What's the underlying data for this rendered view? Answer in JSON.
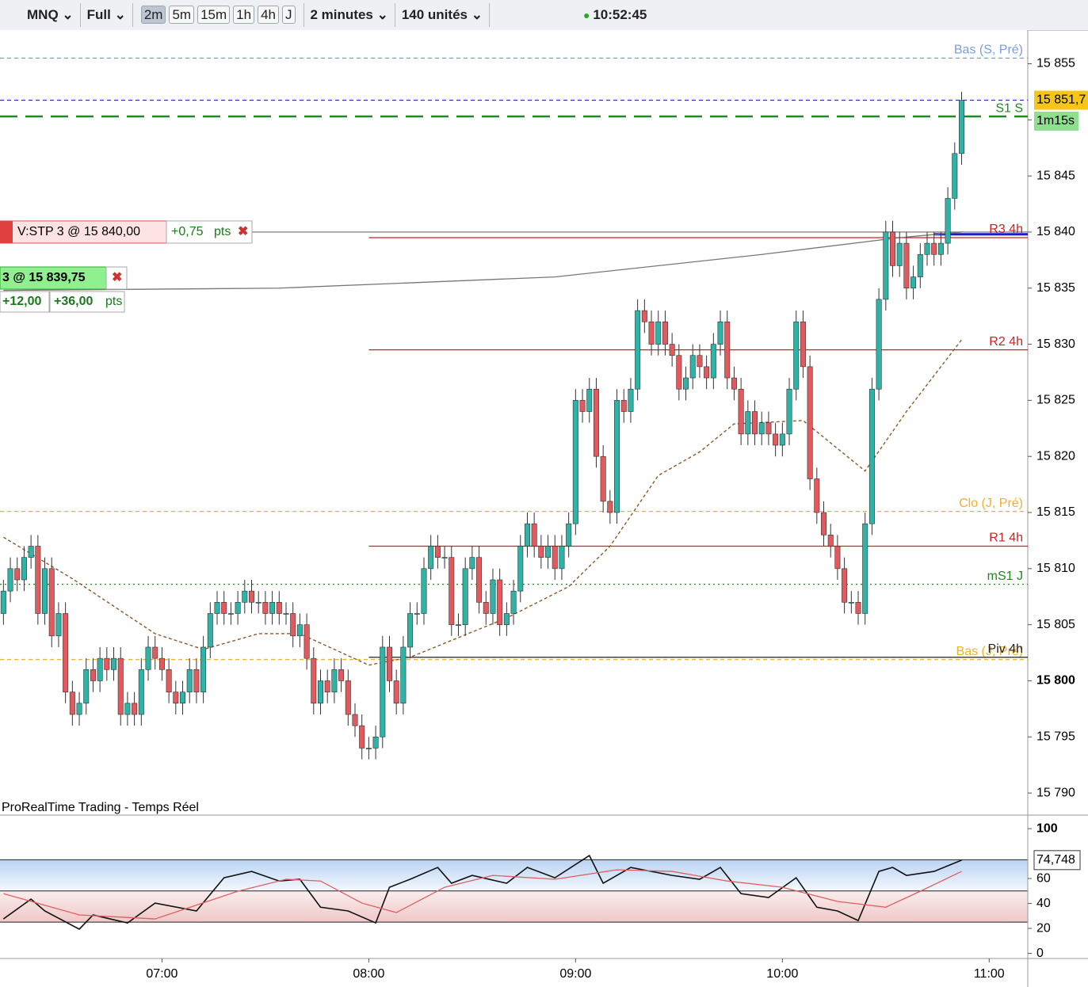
{
  "toolbar": {
    "symbol": "MNQ",
    "mode": "Full",
    "timeframes": [
      "2m",
      "5m",
      "15m",
      "1h",
      "4h",
      "J"
    ],
    "interval": "2 minutes",
    "units": "140 unités",
    "clock": "10:52:45"
  },
  "footer": "ProRealTime Trading - Temps Réel",
  "chart_data": [
    {
      "type": "candlestick",
      "up_color": "#2fb3a6",
      "down_color": "#e25a5e",
      "ylim": [
        15788.1,
        15858
      ],
      "xlim": [
        -0.5,
        148.6
      ],
      "yticks": [
        {
          "value": 15855,
          "label": "15 855"
        },
        {
          "value": 15850,
          "label": "15 850"
        },
        {
          "value": 15845,
          "label": "15 845"
        },
        {
          "value": 15840,
          "label": "15 840"
        },
        {
          "value": 15835,
          "label": "15 835"
        },
        {
          "value": 15830,
          "label": "15 830"
        },
        {
          "value": 15825,
          "label": "15 825"
        },
        {
          "value": 15820,
          "label": "15 820"
        },
        {
          "value": 15815,
          "label": "15 815"
        },
        {
          "value": 15810,
          "label": "15 810"
        },
        {
          "value": 15805,
          "label": "15 805"
        },
        {
          "value": 15800,
          "label": "15 800"
        },
        {
          "value": 15795,
          "label": "15 795"
        },
        {
          "value": 15790,
          "label": "15 790"
        }
      ],
      "xticks": [
        {
          "value": 23,
          "label": "07:00"
        },
        {
          "value": 53,
          "label": "08:00"
        },
        {
          "value": 83,
          "label": "09:00"
        },
        {
          "value": 113,
          "label": "10:00"
        },
        {
          "value": 143,
          "label": "11:00"
        }
      ],
      "open": [
        15806,
        15808,
        15810,
        15809,
        15811,
        15812,
        15806,
        15810,
        15804,
        15806,
        15799,
        15797,
        15798,
        15801,
        15800,
        15802,
        15801,
        15802,
        15797,
        15798,
        15797,
        15801,
        15803,
        15802,
        15801,
        15799,
        15798,
        15799,
        15801,
        15799,
        15803,
        15806,
        15807,
        15806,
        15806,
        15807,
        15808,
        15807,
        15807,
        15806,
        15807,
        15806,
        15806,
        15804,
        15805,
        15802,
        15798,
        15800,
        15799,
        15801,
        15800,
        15797,
        15796,
        15794,
        15794,
        15795,
        15803,
        15800,
        15798,
        15803,
        15806,
        15806,
        15810,
        15812,
        15811,
        15811,
        15805,
        15805,
        15810,
        15811,
        15807,
        15806,
        15809,
        15805,
        15806,
        15808,
        15812,
        15814,
        15812,
        15811,
        15812,
        15810,
        15812,
        15814,
        15825,
        15824,
        15826,
        15820,
        15816,
        15815,
        15825,
        15824,
        15826,
        15833,
        15832,
        15830,
        15832,
        15830,
        15829,
        15826,
        15827,
        15829,
        15828,
        15827,
        15830,
        15832,
        15827,
        15826,
        15822,
        15824,
        15822,
        15823,
        15822,
        15821,
        15822,
        15826,
        15832,
        15828,
        15818,
        15815,
        15813,
        15812,
        15810,
        15807,
        15807,
        15806,
        15814,
        15826,
        15834,
        15840,
        15837,
        15839,
        15835,
        15836,
        15838,
        15839,
        15838,
        15839,
        15843,
        15847
      ],
      "high": [
        15809,
        15811,
        15811,
        15812,
        15813,
        15813,
        15811,
        15811,
        15807,
        15807,
        15800,
        15799,
        15802,
        15802,
        15803,
        15803,
        15803,
        15803,
        15799,
        15799,
        15802,
        15804,
        15804,
        15803,
        15802,
        15800,
        15800,
        15802,
        15802,
        15804,
        15807,
        15808,
        15808,
        15807,
        15808,
        15809,
        15809,
        15808,
        15808,
        15808,
        15808,
        15807,
        15807,
        15806,
        15806,
        15803,
        15801,
        15801,
        15802,
        15802,
        15801,
        15798,
        15797,
        15795,
        15796,
        15804,
        15804,
        15801,
        15804,
        15807,
        15807,
        15811,
        15813,
        15813,
        15812,
        15812,
        15806,
        15811,
        15812,
        15812,
        15808,
        15810,
        15810,
        15807,
        15809,
        15813,
        15815,
        15815,
        15813,
        15813,
        15813,
        15813,
        15815,
        15826,
        15826,
        15827,
        15827,
        15821,
        15817,
        15826,
        15826,
        15827,
        15834,
        15834,
        15833,
        15833,
        15833,
        15831,
        15830,
        15828,
        15830,
        15830,
        15829,
        15831,
        15833,
        15833,
        15828,
        15827,
        15825,
        15825,
        15824,
        15824,
        15823,
        15823,
        15827,
        15833,
        15833,
        15829,
        15819,
        15816,
        15814,
        15813,
        15811,
        15808,
        15808,
        15815,
        15827,
        15835,
        15841,
        15841,
        15840,
        15840,
        15837,
        15839,
        15840,
        15840,
        15840,
        15844,
        15848,
        15852.5
      ],
      "low": [
        15805,
        15807,
        15808,
        15808,
        15810,
        15805,
        15805,
        15803,
        15803,
        15798,
        15796,
        15796,
        15797,
        15799,
        15799,
        15800,
        15800,
        15796,
        15796,
        15796,
        15796,
        15800,
        15801,
        15800,
        15798,
        15797,
        15797,
        15798,
        15798,
        15798,
        15802,
        15805,
        15805,
        15805,
        15805,
        15806,
        15806,
        15806,
        15805,
        15805,
        15805,
        15805,
        15803,
        15803,
        15801,
        15797,
        15797,
        15798,
        15798,
        15799,
        15796,
        15795,
        15793,
        15793,
        15793,
        15794,
        15799,
        15797,
        15797,
        15802,
        15805,
        15805,
        15809,
        15810,
        15810,
        15804,
        15804,
        15804,
        15809,
        15806,
        15805,
        15805,
        15804,
        15804,
        15805,
        15807,
        15811,
        15811,
        15810,
        15810,
        15809,
        15809,
        15811,
        15813,
        15823,
        15823,
        15819,
        15815,
        15814,
        15814,
        15823,
        15823,
        15825,
        15831,
        15829,
        15829,
        15829,
        15828,
        15825,
        15825,
        15826,
        15827,
        15826,
        15826,
        15829,
        15826,
        15825,
        15821,
        15821,
        15821,
        15821,
        15821,
        15820,
        15820,
        15821,
        15825,
        15827,
        15817,
        15814,
        15812,
        15811,
        15809,
        15806,
        15806,
        15805,
        15805,
        15813,
        15825,
        15833,
        15836,
        15836,
        15834,
        15834,
        15835,
        15837,
        15837,
        15837,
        15838,
        15842,
        15846
      ],
      "close": [
        15808,
        15810,
        15809,
        15811,
        15812,
        15806,
        15810,
        15804,
        15806,
        15799,
        15797,
        15798,
        15801,
        15800,
        15802,
        15801,
        15802,
        15797,
        15798,
        15797,
        15801,
        15803,
        15802,
        15801,
        15799,
        15798,
        15799,
        15801,
        15799,
        15803,
        15806,
        15807,
        15806,
        15806,
        15807,
        15808,
        15807,
        15807,
        15806,
        15807,
        15806,
        15806,
        15804,
        15805,
        15802,
        15798,
        15800,
        15799,
        15801,
        15800,
        15797,
        15796,
        15794,
        15794,
        15795,
        15803,
        15800,
        15798,
        15803,
        15806,
        15806,
        15810,
        15812,
        15811,
        15811,
        15805,
        15805,
        15810,
        15811,
        15807,
        15806,
        15809,
        15805,
        15806,
        15808,
        15812,
        15814,
        15812,
        15811,
        15812,
        15810,
        15812,
        15814,
        15825,
        15824,
        15826,
        15820,
        15816,
        15815,
        15825,
        15824,
        15826,
        15833,
        15832,
        15830,
        15832,
        15830,
        15829,
        15826,
        15827,
        15829,
        15828,
        15827,
        15830,
        15832,
        15827,
        15826,
        15822,
        15824,
        15822,
        15823,
        15822,
        15821,
        15822,
        15826,
        15832,
        15828,
        15818,
        15815,
        15813,
        15812,
        15810,
        15807,
        15807,
        15806,
        15814,
        15826,
        15834,
        15840,
        15837,
        15839,
        15835,
        15836,
        15838,
        15839,
        15838,
        15839,
        15843,
        15847,
        15851.75
      ],
      "moving_average": {
        "color": "#8b5a2b",
        "x": [
          0,
          10,
          22,
          29,
          37,
          43,
          53,
          59,
          73,
          82,
          88,
          95,
          101,
          106,
          116,
          125,
          131,
          139
        ],
        "values": [
          15812.8,
          15809.1,
          15804.2,
          15802.8,
          15804.2,
          15804.2,
          15801.4,
          15802.1,
          15805.6,
          15808.4,
          15812,
          15818.3,
          15820.4,
          15822.9,
          15823.2,
          15818.7,
          15824,
          15830.4
        ]
      },
      "position_curve": {
        "color": "#777777",
        "x": [
          0,
          40,
          80,
          110,
          130,
          139
        ],
        "values": [
          15834.8,
          15835,
          15836,
          15838,
          15839.5,
          15840
        ]
      },
      "levels": [
        {
          "name": "Bas (S, Pré)",
          "value": 15855.5,
          "color": "#7a9de6",
          "style": "dashed"
        },
        {
          "value": 15851.75,
          "color": "#3030b0",
          "style": "dashed"
        },
        {
          "name": "S1 S",
          "value": 15850.3,
          "color": "#1e8a1e",
          "style": "longdash"
        },
        {
          "value": 15840,
          "color": "#888888",
          "style": "solid"
        },
        {
          "name": "R3 4h",
          "value": 15839.5,
          "color": "#d02020",
          "style": "solid",
          "start": 53
        },
        {
          "value": 15839.8,
          "color": "#1c1cc8",
          "style": "thick",
          "start": 135
        },
        {
          "name": "R2 4h",
          "value": 15829.5,
          "color": "#d02020",
          "style": "solid",
          "start": 53
        },
        {
          "name": "Clo (J, Pré)",
          "value": 15815.1,
          "color": "#f0b030",
          "style": "dashed"
        },
        {
          "name": "R1 4h",
          "value": 15812,
          "color": "#d02020",
          "style": "solid",
          "start": 53
        },
        {
          "name": "mS1 J",
          "value": 15808.6,
          "color": "#1e8a1e",
          "style": "dotted"
        },
        {
          "name": "Bas (J, Pré)",
          "value": 15801.9,
          "color": "#f0b030",
          "style": "dashed"
        },
        {
          "name": "Piv 4h",
          "value": 15802.1,
          "color": "#222222",
          "style": "solid",
          "start": 53
        }
      ],
      "orders": [
        {
          "label": "V:STP  3  @  15 840,00",
          "pnl": "+0,75",
          "unit": "pts"
        },
        {
          "label": "3  @  15 839,75",
          "pnl": "+12,00",
          "total": "+36,00",
          "unit": "pts"
        }
      ],
      "last_price_label": "15 851,7",
      "countdown": "1m15s"
    },
    {
      "type": "line",
      "ylim": [
        -4.1,
        110.2
      ],
      "yticks": [
        100,
        60,
        40,
        20,
        0
      ],
      "bands": [
        75,
        50,
        25
      ],
      "series": [
        {
          "color": "#111111",
          "x": [
            0,
            4,
            6,
            11,
            13,
            18,
            22,
            28,
            32,
            36,
            40,
            43,
            46,
            50,
            54,
            56,
            59,
            63,
            65,
            68,
            73,
            76,
            80,
            85,
            87,
            91,
            97,
            101,
            104,
            107,
            111,
            115,
            118,
            121,
            124,
            127,
            129,
            131,
            135,
            139
          ],
          "values": [
            27.6,
            43.5,
            34,
            19.4,
            30.8,
            24.4,
            40.3,
            34,
            60.6,
            65.7,
            58,
            59.4,
            37,
            34,
            24.4,
            53,
            59.4,
            68.9,
            56.2,
            62.5,
            56.2,
            68.9,
            60.6,
            78.4,
            56.2,
            68.9,
            62.5,
            59.4,
            68.9,
            47.9,
            44.8,
            60.6,
            37,
            34,
            26.3,
            65.7,
            68.9,
            62.5,
            65.7,
            74.748
          ]
        },
        {
          "color": "#e06060",
          "x": [
            0,
            11,
            22,
            34,
            41,
            46,
            52,
            57,
            64,
            71,
            80,
            89,
            97,
            105,
            113,
            121,
            128,
            133,
            139
          ],
          "values": [
            47.9,
            30.8,
            27.6,
            49.8,
            59.4,
            58,
            40.3,
            32.7,
            53,
            62.5,
            59.4,
            67,
            65.7,
            58,
            53,
            41.6,
            37,
            49.8,
            65.7
          ]
        }
      ],
      "last_label": "74,748"
    }
  ]
}
